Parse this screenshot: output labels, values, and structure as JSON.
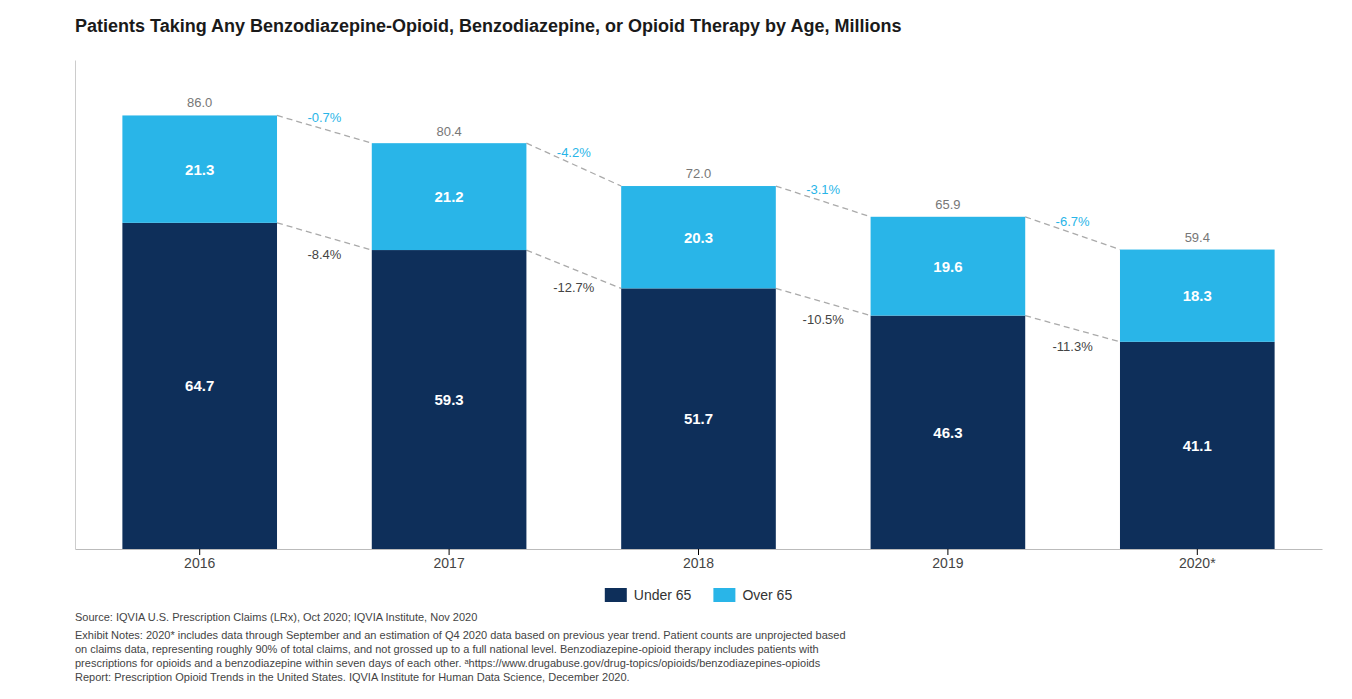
{
  "chart_data": {
    "type": "bar",
    "title": "Patients Taking Any Benzodiazepine-Opioid, Benzodiazepine, or Opioid Therapy by Age, Millions",
    "categories": [
      "2016",
      "2017",
      "2018",
      "2019",
      "2020*"
    ],
    "series": [
      {
        "name": "Under 65",
        "color": "#0e2f5a",
        "values": [
          64.7,
          59.3,
          51.7,
          46.3,
          41.1
        ],
        "change_labels": [
          "-8.4%",
          "-12.7%",
          "-10.5%",
          "-11.3%"
        ]
      },
      {
        "name": "Over 65",
        "color": "#29b5e8",
        "values": [
          21.3,
          21.2,
          20.3,
          19.6,
          18.3
        ],
        "change_labels": [
          "-0.7%",
          "-4.2%",
          "-3.1%",
          "-6.7%"
        ]
      }
    ],
    "totals": {
      "values": [
        86.0,
        80.4,
        72.0,
        65.9,
        59.4
      ],
      "value_labels": [
        "86.0",
        "80.4",
        "72.0",
        "65.9",
        "59.4"
      ]
    },
    "stacked": true,
    "data_labels": true,
    "tick_labels": "x",
    "grid": false,
    "legend": "bottom",
    "ylim": [
      0,
      97
    ],
    "source": "Source: IQVIA U.S. Prescription Claims (LRx), Oct 2020; IQVIA Institute, Nov 2020",
    "notes": [
      "Exhibit Notes: 2020* includes data through September and an estimation of Q4 2020 data based on previous year trend. Patient counts are unprojected based",
      "on claims data, representing roughly 90% of total claims, and not grossed up to a full national level. Benzodiazepine-opioid therapy includes patients with",
      "prescriptions for opioids and a benzodiazepine within seven days of each other. ᵃhttps://www.drugabuse.gov/drug-topics/opioids/benzodiazepines-opioids",
      "Report: Prescription Opioid Trends in the United States. IQVIA Institute for Human Data Science, December 2020."
    ]
  }
}
